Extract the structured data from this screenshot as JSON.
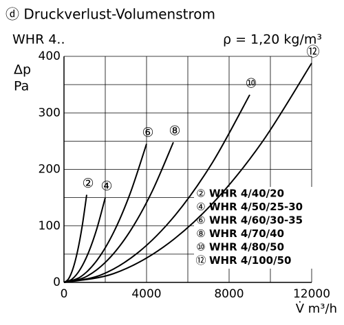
{
  "chart_data": {
    "type": "line",
    "title": "ⓓ Druckverlust-Volumenstrom",
    "subtitle": "WHR 4..",
    "annotation": "ρ = 1,20 kg/m³",
    "y_label": [
      "Δp",
      "Pa"
    ],
    "x_label": "V̇ m³/h",
    "xlim": [
      0,
      12000
    ],
    "xticks": [
      0,
      4000,
      8000,
      12000
    ],
    "x_minor_ticks": [
      2000,
      6000,
      10000
    ],
    "ylim": [
      0,
      400
    ],
    "yticks": [
      0,
      100,
      200,
      300,
      400
    ],
    "y_minor_ticks": [
      50,
      150,
      250,
      350
    ],
    "grid": true,
    "legend": "lower right",
    "series": [
      {
        "name": "WHR 4/40/20",
        "label": "②",
        "color": "#000000",
        "x": [
          0,
          220,
          440,
          660,
          880,
          1100
        ],
        "values": [
          0,
          6.2,
          24.8,
          55.8,
          99.2,
          155
        ]
      },
      {
        "name": "WHR 4/50/25-30",
        "label": "④",
        "color": "#000000",
        "x": [
          0,
          400,
          800,
          1200,
          1600,
          2000
        ],
        "values": [
          0,
          6,
          24,
          54,
          96,
          150
        ]
      },
      {
        "name": "WHR 4/60/30-35",
        "label": "⑥",
        "color": "#000000",
        "x": [
          0,
          800,
          1600,
          2400,
          3200,
          4000
        ],
        "values": [
          0,
          9.8,
          39.2,
          88.2,
          156.8,
          245
        ]
      },
      {
        "name": "WHR 4/70/40",
        "label": "⑧",
        "color": "#000000",
        "x": [
          0,
          1060,
          2120,
          3180,
          4240,
          5300
        ],
        "values": [
          0,
          9.9,
          39.7,
          89.3,
          158.7,
          248
        ]
      },
      {
        "name": "WHR 4/80/50",
        "label": "⑩",
        "color": "#000000",
        "x": [
          0,
          1800,
          3600,
          5400,
          7200,
          9000
        ],
        "values": [
          0,
          13.3,
          53.1,
          119.5,
          212.5,
          332
        ]
      },
      {
        "name": "WHR 4/100/50",
        "label": "⑫",
        "color": "#000000",
        "x": [
          0,
          2400,
          4800,
          7200,
          9600,
          12000
        ],
        "values": [
          0,
          15.5,
          62.1,
          139.7,
          248.3,
          388
        ]
      }
    ]
  }
}
